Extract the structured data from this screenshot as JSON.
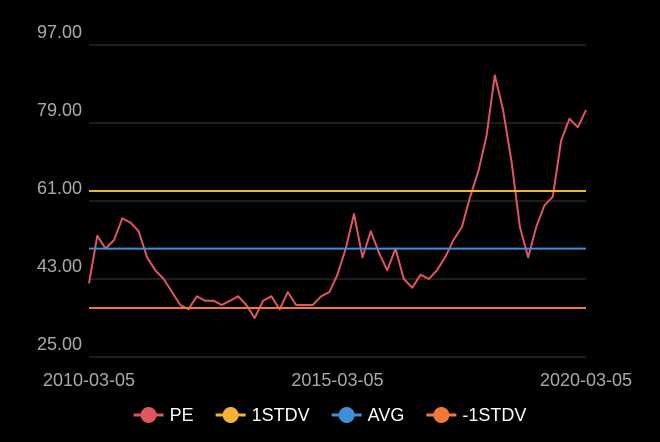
{
  "chart_data": {
    "type": "line",
    "x": [
      "2010-03-05",
      "2010-05-05",
      "2010-07-05",
      "2010-09-05",
      "2010-11-05",
      "2011-01-05",
      "2011-03-05",
      "2011-05-05",
      "2011-07-05",
      "2011-09-05",
      "2011-11-05",
      "2012-01-05",
      "2012-03-05",
      "2012-05-05",
      "2012-07-05",
      "2012-09-05",
      "2012-11-05",
      "2013-01-05",
      "2013-03-05",
      "2013-05-05",
      "2013-07-05",
      "2013-09-05",
      "2013-11-05",
      "2014-01-05",
      "2014-03-05",
      "2014-05-05",
      "2014-07-05",
      "2014-09-05",
      "2014-11-05",
      "2015-01-05",
      "2015-03-05",
      "2015-05-05",
      "2015-07-05",
      "2015-09-05",
      "2015-11-05",
      "2016-01-05",
      "2016-03-05",
      "2016-05-05",
      "2016-07-05",
      "2016-09-05",
      "2016-11-05",
      "2017-01-05",
      "2017-03-05",
      "2017-05-05",
      "2017-07-05",
      "2017-09-05",
      "2017-11-05",
      "2018-01-05",
      "2018-03-05",
      "2018-05-05",
      "2018-07-05",
      "2018-09-05",
      "2018-11-05",
      "2019-01-05",
      "2019-03-05",
      "2019-05-05",
      "2019-07-05",
      "2019-09-05",
      "2019-11-05",
      "2020-01-05",
      "2020-03-05"
    ],
    "series": [
      {
        "name": "PE",
        "color": "#e0555e",
        "values": [
          42,
          53,
          50,
          52,
          57,
          56,
          54,
          48,
          45,
          43,
          40,
          37,
          36,
          39,
          38,
          38,
          37,
          38,
          39,
          37,
          34,
          38,
          39,
          36,
          40,
          37,
          37,
          37,
          39,
          40,
          44,
          50,
          58,
          48,
          54,
          49,
          45,
          50,
          43,
          41,
          44,
          43,
          45,
          48,
          52,
          55,
          62,
          68,
          76,
          90,
          82,
          70,
          55,
          48,
          55,
          60,
          62,
          75,
          80,
          78,
          82
        ]
      },
      {
        "name": "1STDV",
        "color": "#f2b233",
        "value": 63.3
      },
      {
        "name": "AVG",
        "color": "#3d8fd6",
        "value": 50
      },
      {
        "name": "-1STDV",
        "color": "#f07a35",
        "value": 36.3
      }
    ],
    "xlim": [
      "2010-03-05",
      "2020-03-05"
    ],
    "xticks": [
      "2010-03-05",
      "2015-03-05",
      "2020-03-05"
    ],
    "ylim": [
      25,
      97
    ],
    "yticks": [
      {
        "value": 25,
        "label": "25.00"
      },
      {
        "value": 43,
        "label": "43.00"
      },
      {
        "value": 61,
        "label": "61.00"
      },
      {
        "value": 79,
        "label": "79.00"
      },
      {
        "value": 97,
        "label": "97.00"
      }
    ],
    "grid": true
  }
}
